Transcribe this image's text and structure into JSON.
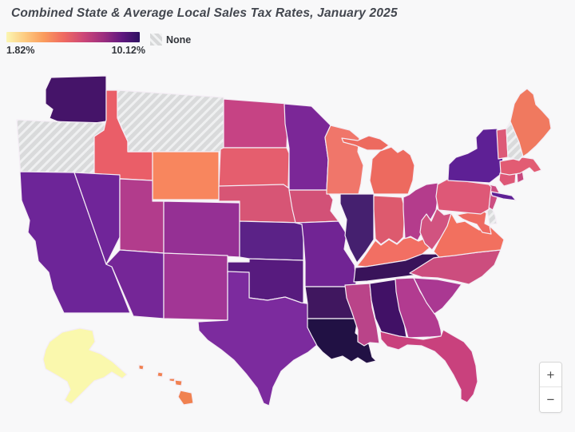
{
  "title": "Combined State & Average Local Sales Tax Rates, January 2025",
  "legend": {
    "min_label": "1.82%",
    "max_label": "10.12%",
    "none_label": "None",
    "gradient_low_color": "#fbf6b2",
    "gradient_high_color": "#2d1160",
    "none_fill": "#d9dadb"
  },
  "controls": {
    "zoom_in": "+",
    "zoom_out": "−"
  },
  "map": {
    "stroke_color": "#f4edf5",
    "background": "#f8f8f9"
  },
  "chart_data": {
    "type": "choropleth",
    "title": "Combined State & Average Local Sales Tax Rates, January 2025",
    "unit": "%",
    "scale": {
      "min": 1.82,
      "max": 10.12,
      "min_label": "1.82%",
      "max_label": "10.12%"
    },
    "no_sales_tax_label": "None",
    "states": [
      {
        "id": "WA",
        "name": "Washington",
        "value": 9.43,
        "fill": "#451469"
      },
      {
        "id": "OR",
        "name": "Oregon",
        "value": null,
        "fill": null
      },
      {
        "id": "CA",
        "name": "California",
        "value": 8.85,
        "fill": "#6d2598"
      },
      {
        "id": "ID",
        "name": "Idaho",
        "value": 6.03,
        "fill": "#ea5e68"
      },
      {
        "id": "NV",
        "name": "Nevada",
        "value": 8.24,
        "fill": "#702599"
      },
      {
        "id": "MT",
        "name": "Montana",
        "value": null,
        "fill": null
      },
      {
        "id": "WY",
        "name": "Wyoming",
        "value": 5.44,
        "fill": "#f8865e"
      },
      {
        "id": "UT",
        "name": "Utah",
        "value": 7.25,
        "fill": "#b23c8c"
      },
      {
        "id": "AZ",
        "name": "Arizona",
        "value": 8.38,
        "fill": "#752697"
      },
      {
        "id": "CO",
        "name": "Colorado",
        "value": 7.81,
        "fill": "#953094"
      },
      {
        "id": "NM",
        "name": "New Mexico",
        "value": 7.62,
        "fill": "#a23695"
      },
      {
        "id": "ND",
        "name": "North Dakota",
        "value": 7.04,
        "fill": "#c64384"
      },
      {
        "id": "SD",
        "name": "South Dakota",
        "value": 6.11,
        "fill": "#e55e6e"
      },
      {
        "id": "NE",
        "name": "Nebraska",
        "value": 6.97,
        "fill": "#d75575"
      },
      {
        "id": "KS",
        "name": "Kansas",
        "value": 8.77,
        "fill": "#5b2287"
      },
      {
        "id": "OK",
        "name": "Oklahoma",
        "value": 9.0,
        "fill": "#571b7e"
      },
      {
        "id": "TX",
        "name": "Texas",
        "value": 8.2,
        "fill": "#7c2b9e"
      },
      {
        "id": "MN",
        "name": "Minnesota",
        "value": 8.13,
        "fill": "#7b2797"
      },
      {
        "id": "IA",
        "name": "Iowa",
        "value": 6.94,
        "fill": "#d25177"
      },
      {
        "id": "MO",
        "name": "Missouri",
        "value": 8.39,
        "fill": "#712494"
      },
      {
        "id": "AR",
        "name": "Arkansas",
        "value": 9.46,
        "fill": "#40175f"
      },
      {
        "id": "LA",
        "name": "Louisiana",
        "value": 10.12,
        "fill": "#211144"
      },
      {
        "id": "WI",
        "name": "Wisconsin",
        "value": 5.7,
        "fill": "#f0766a"
      },
      {
        "id": "IL",
        "name": "Illinois",
        "value": 8.89,
        "fill": "#45206f"
      },
      {
        "id": "MI",
        "name": "Michigan",
        "value": 6.0,
        "fill": "#ed6a5f"
      },
      {
        "id": "IN",
        "name": "Indiana",
        "value": 7.0,
        "fill": "#dd5a6e"
      },
      {
        "id": "OH",
        "name": "Ohio",
        "value": 7.24,
        "fill": "#b43c8c"
      },
      {
        "id": "KY",
        "name": "Kentucky",
        "value": 6.0,
        "fill": "#f26f63"
      },
      {
        "id": "TN",
        "name": "Tennessee",
        "value": 9.56,
        "fill": "#39135a"
      },
      {
        "id": "MS",
        "name": "Mississippi",
        "value": 7.06,
        "fill": "#ba4489"
      },
      {
        "id": "AL",
        "name": "Alabama",
        "value": 9.44,
        "fill": "#411166"
      },
      {
        "id": "GA",
        "name": "Georgia",
        "value": 7.38,
        "fill": "#b23b90"
      },
      {
        "id": "FL",
        "name": "Florida",
        "value": 7.0,
        "fill": "#c9417d"
      },
      {
        "id": "SC",
        "name": "South Carolina",
        "value": 7.5,
        "fill": "#aa3892"
      },
      {
        "id": "NC",
        "name": "North Carolina",
        "value": 6.99,
        "fill": "#cc4d7e"
      },
      {
        "id": "VA",
        "name": "Virginia",
        "value": 5.77,
        "fill": "#f2705f"
      },
      {
        "id": "WV",
        "name": "West Virginia",
        "value": 6.57,
        "fill": "#d15380"
      },
      {
        "id": "KY2",
        "skip": true
      },
      {
        "id": "MD",
        "name": "Maryland",
        "value": 6.0,
        "fill": "#ee6a62"
      },
      {
        "id": "DE",
        "name": "Delaware",
        "value": null,
        "fill": null
      },
      {
        "id": "NJ",
        "name": "New Jersey",
        "value": 6.63,
        "fill": "#cc4d81"
      },
      {
        "id": "PA",
        "name": "Pennsylvania",
        "value": 6.34,
        "fill": "#de5877"
      },
      {
        "id": "NY",
        "name": "New York",
        "value": 8.53,
        "fill": "#5e2095"
      },
      {
        "id": "CT",
        "name": "Connecticut",
        "value": 6.35,
        "fill": "#de5877"
      },
      {
        "id": "RI",
        "name": "Rhode Island",
        "value": 7.0,
        "fill": "#c8497e"
      },
      {
        "id": "MA",
        "name": "Massachusetts",
        "value": 6.25,
        "fill": "#e25c73"
      },
      {
        "id": "VT",
        "name": "Vermont",
        "value": 6.36,
        "fill": "#dd5977"
      },
      {
        "id": "NH",
        "name": "New Hampshire",
        "value": null,
        "fill": null
      },
      {
        "id": "ME",
        "name": "Maine",
        "value": 5.5,
        "fill": "#f0795f"
      },
      {
        "id": "AK",
        "name": "Alaska",
        "value": 1.82,
        "fill": "#faf8ad"
      },
      {
        "id": "HI",
        "name": "Hawaii",
        "value": 4.5,
        "fill": "#f08150"
      }
    ]
  }
}
